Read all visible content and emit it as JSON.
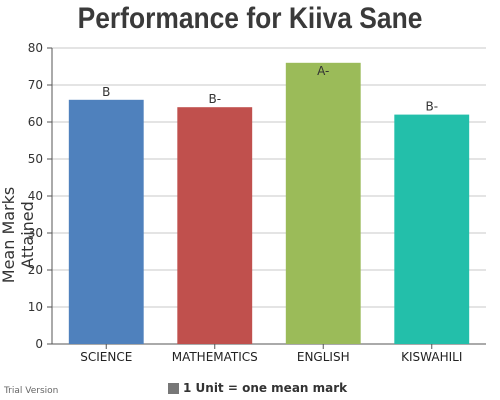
{
  "chart_data": {
    "type": "bar",
    "title": "Performance for Kiiva Sane",
    "xlabel": "",
    "ylabel": "Mean Marks Attained",
    "ylim": [
      0,
      80
    ],
    "yticks": [
      0,
      10,
      20,
      30,
      40,
      50,
      60,
      70,
      80
    ],
    "grid": true,
    "categories": [
      "SCIENCE",
      "MATHEMATICS",
      "ENGLISH",
      "KISWAHILI"
    ],
    "values": [
      66,
      64,
      76,
      62
    ],
    "data_labels": [
      "B",
      "B-",
      "A-",
      "B-"
    ],
    "colors": [
      "#4f81bd",
      "#c0504d",
      "#9bbb59",
      "#23bfaa"
    ],
    "legend": {
      "position": "bottom",
      "entries": [
        {
          "label": "1 Unit = one mean mark",
          "color": "#777777"
        }
      ]
    }
  },
  "watermark": "Trial Version"
}
